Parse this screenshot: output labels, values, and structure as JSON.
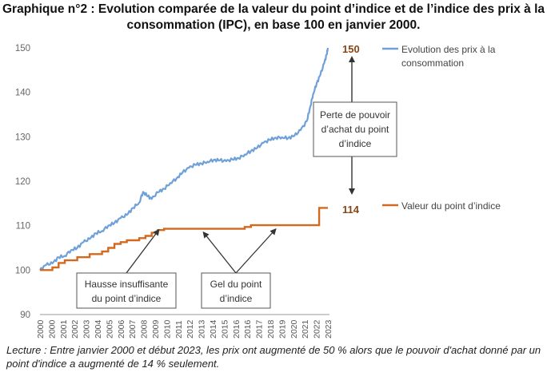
{
  "title_line1": "Graphique n°2 : Evolution comparée de la valeur du point d’indice et de l’indice des prix à la",
  "title_line2": "consommation (IPC), en base 100 en janvier 2000.",
  "caption_line1": "Lecture : Entre janvier 2000 et début 2023, les prix ont augmenté de 50 % alors que le pouvoir d'achat donné par un",
  "caption_line2": "point d'indice a augmenté de 14 % seulement.",
  "colors": {
    "ipc": "#6fa0d8",
    "point": "#d2691e",
    "end_label": "#8b4513",
    "axis": "#999999",
    "box_border": "#555555"
  },
  "chart_data": {
    "type": "line",
    "ylim": [
      90,
      150
    ],
    "yticks": [
      90,
      100,
      110,
      120,
      130,
      140,
      150
    ],
    "x_labels": [
      "2000",
      "2000",
      "2001",
      "2002",
      "2003",
      "2004",
      "2005",
      "2006",
      "2007",
      "2008",
      "2009",
      "2010",
      "2011",
      "2012",
      "2013",
      "2014",
      "2015",
      "2016",
      "2016",
      "2017",
      "2018",
      "2019",
      "2020",
      "2021",
      "2022",
      "2023"
    ],
    "series": [
      {
        "name": "Evolution des prix à la consommation",
        "end_label": "150",
        "points": [
          [
            2000.0,
            100.0
          ],
          [
            2000.5,
            101.2
          ],
          [
            2001.0,
            101.5
          ],
          [
            2001.5,
            102.9
          ],
          [
            2002.0,
            103.2
          ],
          [
            2002.5,
            104.5
          ],
          [
            2003.0,
            105.0
          ],
          [
            2003.5,
            106.3
          ],
          [
            2004.0,
            107.0
          ],
          [
            2004.5,
            108.3
          ],
          [
            2005.0,
            108.8
          ],
          [
            2005.5,
            110.0
          ],
          [
            2006.0,
            110.6
          ],
          [
            2006.5,
            111.7
          ],
          [
            2007.0,
            112.4
          ],
          [
            2007.5,
            114.0
          ],
          [
            2008.0,
            115.2
          ],
          [
            2008.3,
            117.6
          ],
          [
            2008.7,
            116.6
          ],
          [
            2009.0,
            116.0
          ],
          [
            2009.5,
            117.5
          ],
          [
            2010.0,
            118.3
          ],
          [
            2010.5,
            119.6
          ],
          [
            2011.0,
            120.6
          ],
          [
            2011.5,
            122.0
          ],
          [
            2012.0,
            123.0
          ],
          [
            2012.5,
            123.7
          ],
          [
            2013.0,
            124.0
          ],
          [
            2013.5,
            124.4
          ],
          [
            2014.0,
            124.8
          ],
          [
            2014.5,
            124.7
          ],
          [
            2015.0,
            124.5
          ],
          [
            2015.5,
            124.9
          ],
          [
            2016.0,
            125.2
          ],
          [
            2016.5,
            126.0
          ],
          [
            2017.0,
            126.8
          ],
          [
            2017.5,
            127.5
          ],
          [
            2018.0,
            128.6
          ],
          [
            2018.5,
            129.3
          ],
          [
            2019.0,
            129.8
          ],
          [
            2019.5,
            129.9
          ],
          [
            2020.0,
            129.7
          ],
          [
            2020.5,
            130.2
          ],
          [
            2021.0,
            131.5
          ],
          [
            2021.5,
            133.5
          ],
          [
            2021.8,
            137.0
          ],
          [
            2022.0,
            139.5
          ],
          [
            2022.3,
            142.0
          ],
          [
            2022.6,
            144.0
          ],
          [
            2022.9,
            146.5
          ],
          [
            2023.1,
            148.5
          ],
          [
            2023.2,
            150.0
          ]
        ]
      },
      {
        "name": "Valeur du point d’indice",
        "end_label": "114",
        "points": [
          [
            2000.0,
            100.0
          ],
          [
            2001.0,
            100.6
          ],
          [
            2001.5,
            101.6
          ],
          [
            2002.0,
            102.2
          ],
          [
            2003.0,
            102.9
          ],
          [
            2004.0,
            103.6
          ],
          [
            2005.0,
            104.2
          ],
          [
            2005.5,
            105.0
          ],
          [
            2006.0,
            105.9
          ],
          [
            2006.5,
            106.3
          ],
          [
            2007.0,
            106.7
          ],
          [
            2008.0,
            107.2
          ],
          [
            2008.5,
            107.7
          ],
          [
            2009.0,
            108.4
          ],
          [
            2009.5,
            109.0
          ],
          [
            2010.0,
            109.3
          ],
          [
            2016.0,
            109.3
          ],
          [
            2016.5,
            109.7
          ],
          [
            2017.0,
            110.1
          ],
          [
            2022.0,
            110.1
          ],
          [
            2022.5,
            114.0
          ],
          [
            2023.2,
            114.0
          ]
        ]
      }
    ],
    "annotations": [
      "Perte de pouvoir",
      "d’achat du  point",
      "d’indice",
      "Hausse insuffisante",
      "du point d’indice",
      "Gel du point",
      "d’indice"
    ],
    "legend_placement": "right"
  }
}
